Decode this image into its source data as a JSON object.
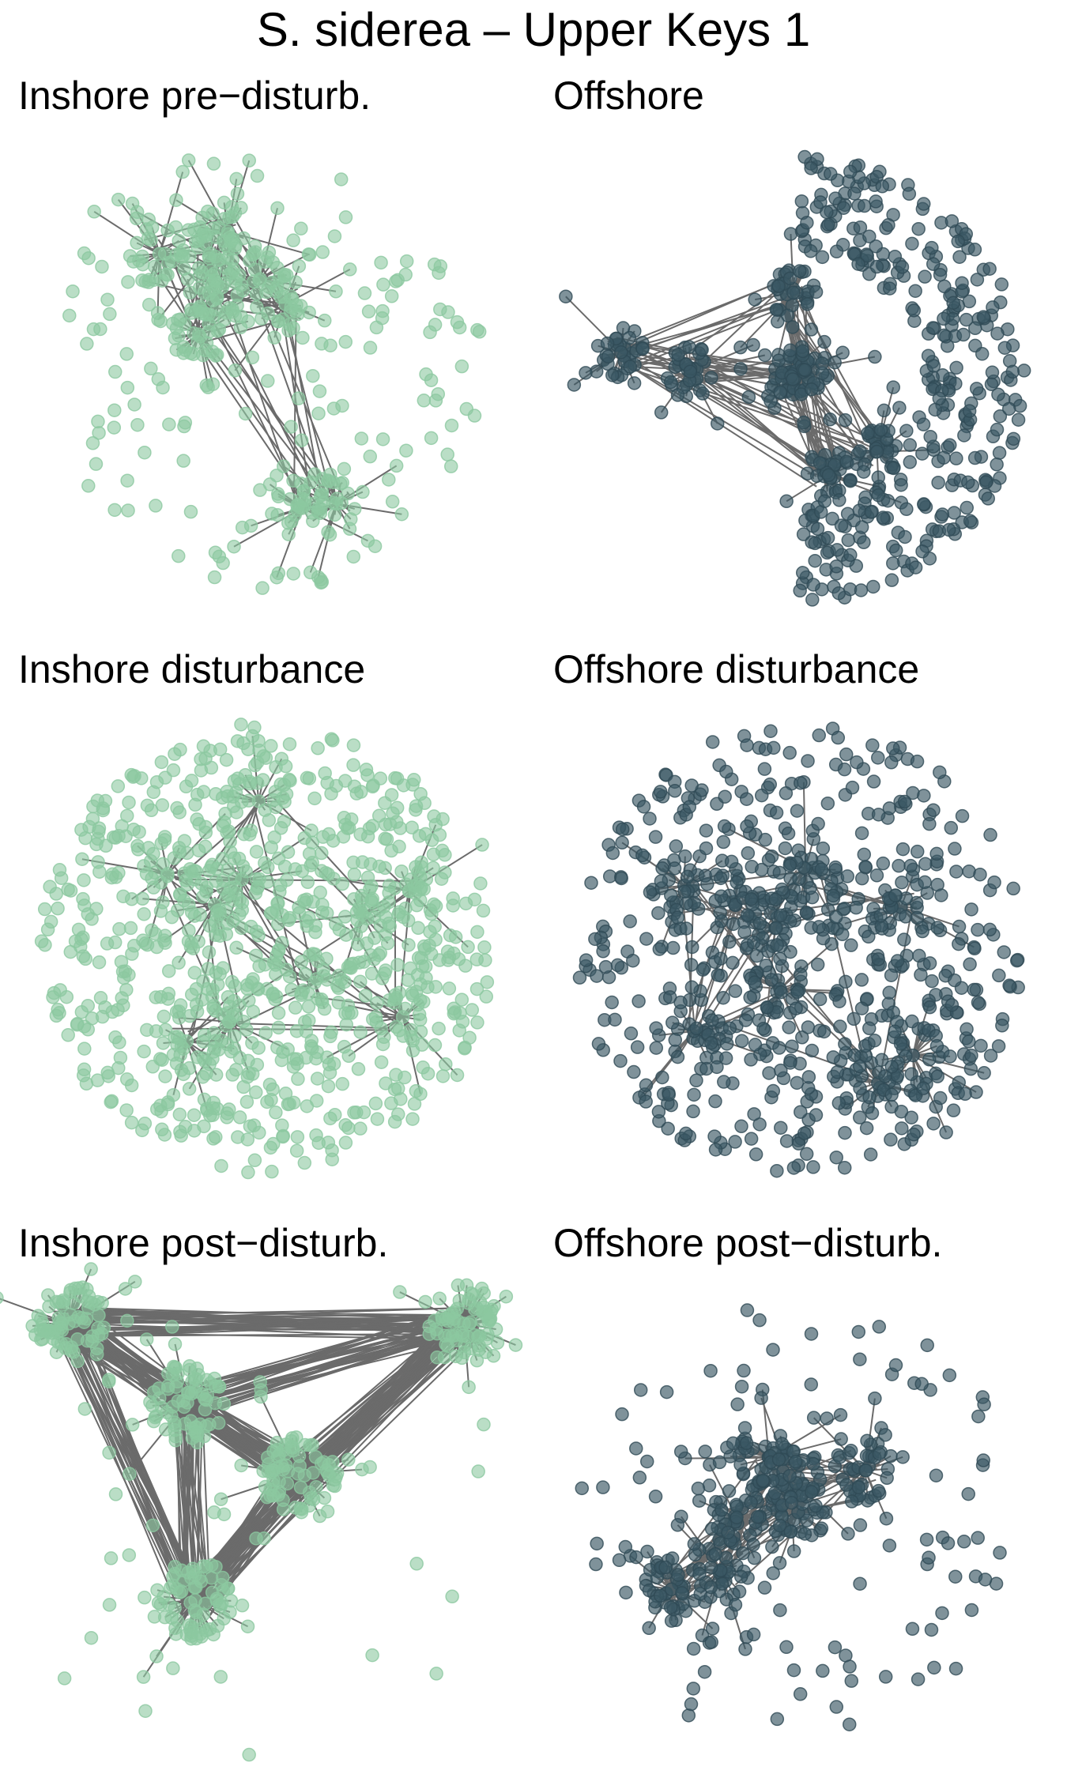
{
  "title": "S. siderea – Upper Keys 1",
  "panels": [
    {
      "label": "Inshore pre−disturb."
    },
    {
      "label": "Offshore"
    },
    {
      "label": "Inshore disturbance"
    },
    {
      "label": "Offshore disturbance"
    },
    {
      "label": "Inshore post−disturb."
    },
    {
      "label": "Offshore post−disturb."
    }
  ]
}
